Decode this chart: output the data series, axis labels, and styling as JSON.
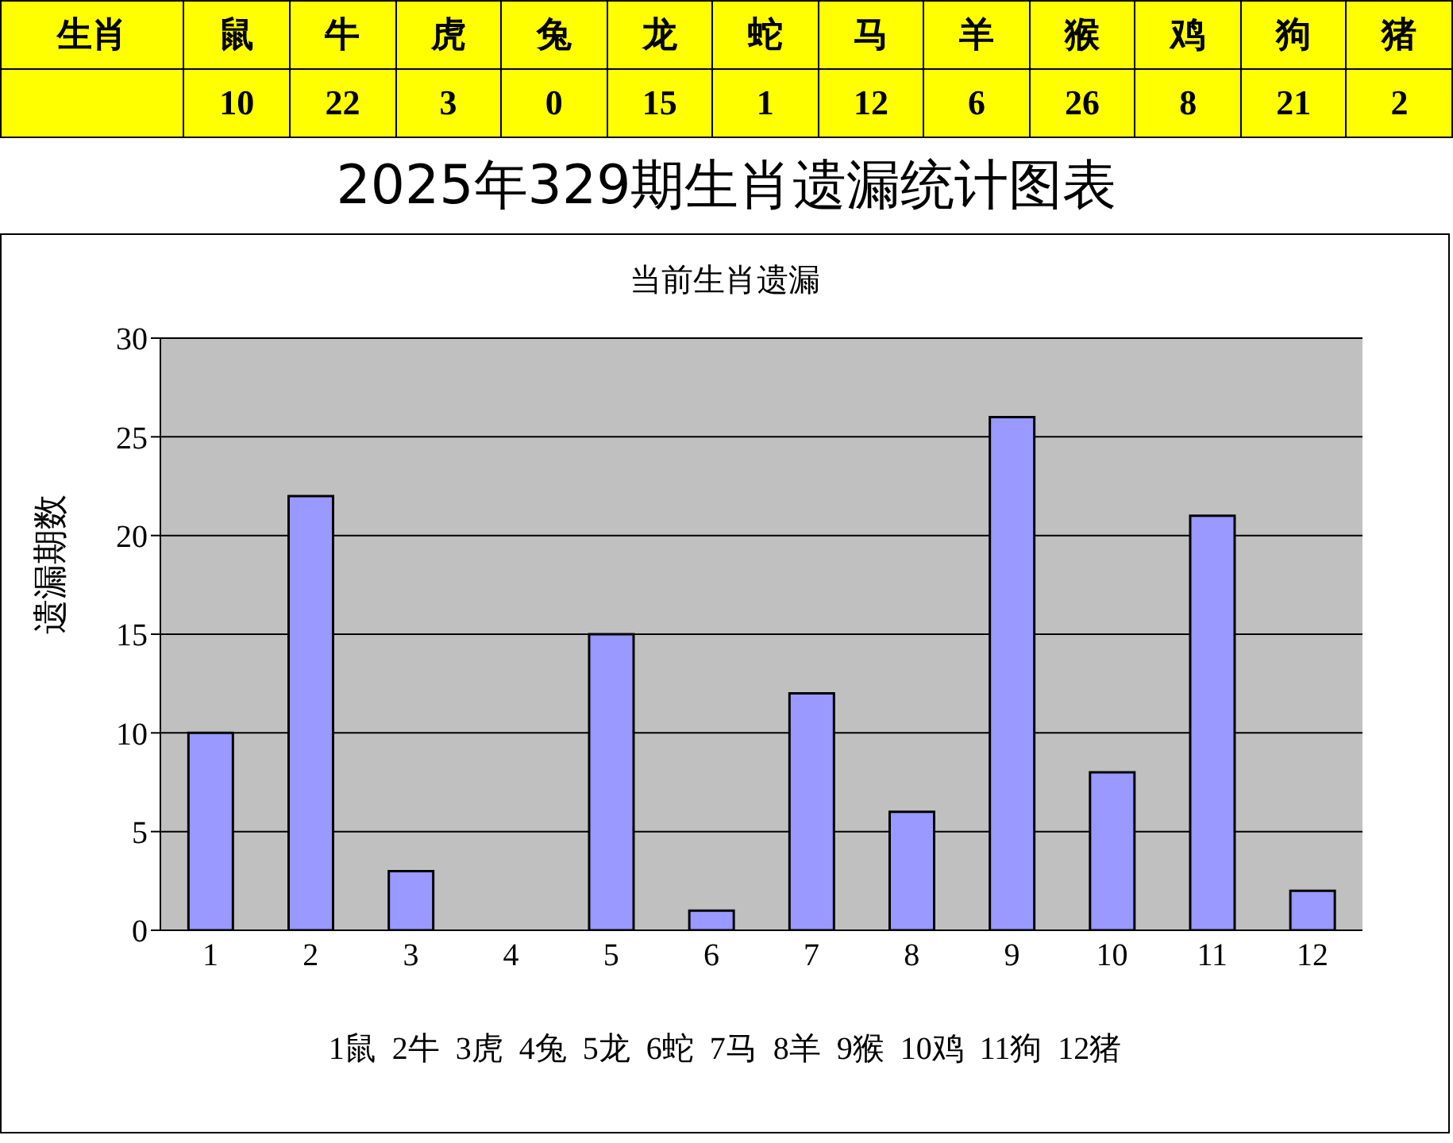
{
  "chart_data": [
    {
      "type": "other",
      "xlabel": "生肖",
      "categories": [
        "鼠",
        "牛",
        "虎",
        "兔",
        "龙",
        "蛇",
        "马",
        "羊",
        "猴",
        "鸡",
        "狗",
        "猪"
      ],
      "color": "#ffff00",
      "data_labels": true,
      "values": [
        10,
        22,
        3,
        0,
        15,
        1,
        12,
        6,
        26,
        8,
        21,
        2
      ]
    },
    {
      "type": "bar",
      "title": "2025年329期生肖遗漏统计图表",
      "subtitle": "当前生肖遗漏",
      "ylabel": "遗漏期数",
      "categories": [
        "1",
        "2",
        "3",
        "4",
        "5",
        "6",
        "7",
        "8",
        "9",
        "10",
        "11",
        "12"
      ],
      "values": [
        10,
        22,
        3,
        0,
        15,
        1,
        12,
        6,
        26,
        8,
        21,
        2
      ],
      "color": "#9999ff",
      "ylim": [
        0,
        30
      ],
      "yticks": [
        0,
        5,
        10,
        15,
        20,
        25,
        30
      ],
      "grid": "y",
      "annotations": [
        "1鼠  2牛  3虎  4兔  5龙  6蛇  7马  8羊  9猴  10鸡  11狗  12猪"
      ]
    }
  ]
}
